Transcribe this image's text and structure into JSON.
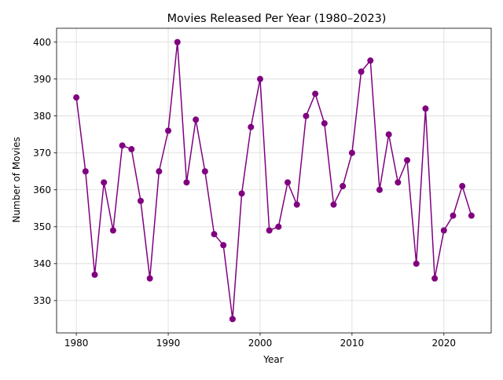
{
  "chart_data": {
    "type": "line",
    "title": "Movies Released Per Year (1980–2023)",
    "xlabel": "Year",
    "ylabel": "Number of Movies",
    "xlim": [
      1977.85,
      2025.15
    ],
    "ylim": [
      321.25,
      403.75
    ],
    "x_ticks": [
      1980,
      1990,
      2000,
      2010,
      2020
    ],
    "y_ticks": [
      330,
      340,
      350,
      360,
      370,
      380,
      390,
      400
    ],
    "grid": true,
    "legend": "none",
    "series": [
      {
        "color": "#800080",
        "marker": "circle",
        "x": [
          1980,
          1981,
          1982,
          1983,
          1984,
          1985,
          1986,
          1987,
          1988,
          1989,
          1990,
          1991,
          1992,
          1993,
          1994,
          1995,
          1996,
          1997,
          1998,
          1999,
          2000,
          2001,
          2002,
          2003,
          2004,
          2005,
          2006,
          2007,
          2008,
          2009,
          2010,
          2011,
          2012,
          2013,
          2014,
          2015,
          2016,
          2017,
          2018,
          2019,
          2020,
          2021,
          2022,
          2023
        ],
        "values": [
          385,
          365,
          337,
          362,
          349,
          372,
          371,
          357,
          336,
          365,
          376,
          400,
          362,
          379,
          365,
          348,
          345,
          325,
          359,
          377,
          390,
          349,
          350,
          362,
          356,
          380,
          386,
          378,
          356,
          361,
          370,
          392,
          395,
          360,
          375,
          362,
          368,
          340,
          382,
          336,
          349,
          353,
          361,
          353
        ]
      }
    ]
  }
}
